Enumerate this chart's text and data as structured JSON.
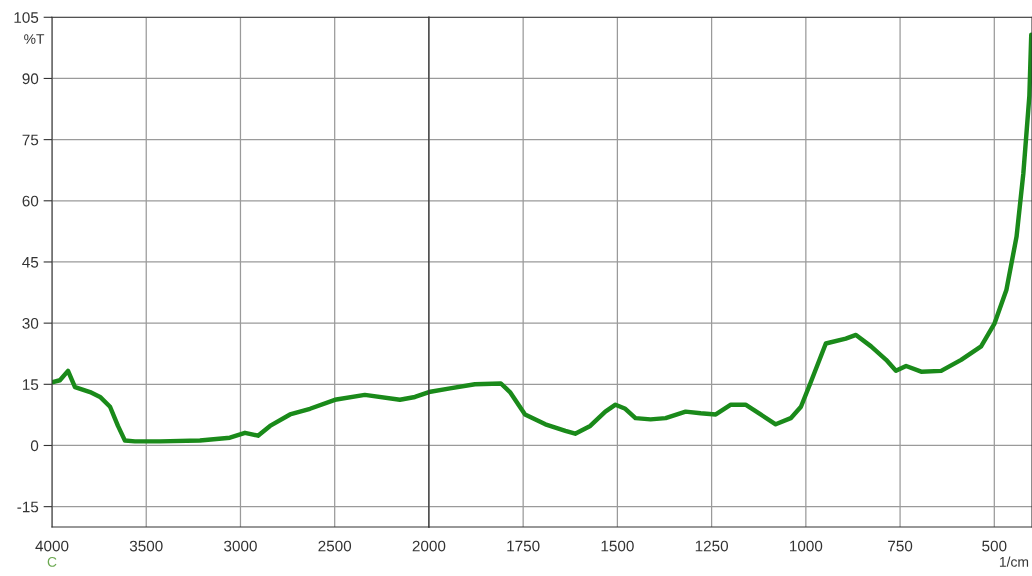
{
  "chart_data": [
    {
      "type": "line",
      "ylabel": "%T",
      "annotations": [
        "C"
      ],
      "x": [
        4000,
        3958,
        3915,
        3878,
        3798,
        3745,
        3692,
        3650,
        3613,
        3560,
        3427,
        3215,
        3056,
        2976,
        2907,
        2843,
        2737,
        2631,
        2499,
        2340,
        2154,
        2074,
        2000
      ],
      "series": [
        {
          "color": "#1a8a1a",
          "values": [
            15.5,
            16,
            18.3,
            14.3,
            13.1,
            11.9,
            9.5,
            4.8,
            1.2,
            1,
            1,
            1.2,
            1.9,
            3.1,
            2.4,
            4.8,
            7.6,
            9,
            11.2,
            12.4,
            11.2,
            11.9,
            13.1
          ]
        }
      ],
      "xlim": [
        4000,
        2000
      ],
      "xticks": [
        4000,
        3500,
        3000,
        2500
      ],
      "ylim": [
        -20,
        105
      ],
      "yticks": [
        -15,
        0,
        15,
        30,
        45,
        60,
        75,
        90,
        105
      ],
      "grid": true,
      "marker": "none",
      "line_style": "solid"
    },
    {
      "type": "line",
      "xlabel": "1/cm",
      "x": [
        2000,
        1944,
        1878,
        1809,
        1785,
        1745,
        1691,
        1638,
        1612,
        1572,
        1532,
        1505,
        1479,
        1452,
        1412,
        1372,
        1319,
        1279,
        1239,
        1199,
        1160,
        1120,
        1080,
        1040,
        1013,
        987,
        947,
        894,
        867,
        827,
        787,
        761,
        734,
        694,
        641,
        588,
        535,
        500,
        468,
        441,
        423,
        407,
        402
      ],
      "series": [
        {
          "color": "#1a8a1a",
          "values": [
            13.1,
            14,
            15,
            15.2,
            13.1,
            7.6,
            5.2,
            3.6,
            2.9,
            4.8,
            8.3,
            10,
            9,
            6.7,
            6.4,
            6.7,
            8.3,
            7.9,
            7.6,
            10,
            10,
            7.6,
            5.2,
            6.7,
            9.5,
            15.5,
            25,
            26.2,
            27.1,
            24.3,
            21,
            18.3,
            19.5,
            18.1,
            18.3,
            21,
            24.3,
            29.8,
            38.1,
            51.2,
            66.7,
            85.7,
            100.7
          ]
        }
      ],
      "xlim": [
        2000,
        400
      ],
      "xticks": [
        2000,
        1750,
        1500,
        1250,
        1000,
        750,
        500
      ],
      "ylim": [
        -20,
        105
      ],
      "yticks": [
        -15,
        0,
        15,
        30,
        45,
        60,
        75,
        90,
        105
      ],
      "tick_labels": "x",
      "grid": true,
      "marker": "none",
      "line_style": "solid"
    }
  ]
}
